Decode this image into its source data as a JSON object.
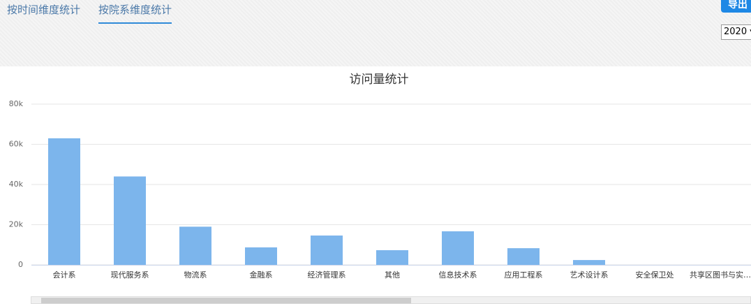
{
  "tabs": [
    "按时间维度统计",
    "按院系维度统计"
  ],
  "export_button": "导出",
  "year_select": "2020",
  "chart_data": {
    "type": "bar",
    "title": "访问量统计",
    "categories": [
      "会计系",
      "现代服务系",
      "物流系",
      "金融系",
      "经济管理系",
      "其他",
      "信息技术系",
      "应用工程系",
      "艺术设计系",
      "安全保卫处",
      "共享区图书与实…"
    ],
    "values": [
      63000,
      44000,
      19000,
      8700,
      14600,
      7300,
      16700,
      8300,
      2400,
      0,
      0
    ],
    "color": "#7cb5ec",
    "ylim": [
      0,
      80000
    ],
    "yticks": [
      {
        "value": 0,
        "label": "0"
      },
      {
        "value": 20000,
        "label": "20k"
      },
      {
        "value": 40000,
        "label": "40k"
      },
      {
        "value": 60000,
        "label": "60k"
      },
      {
        "value": 80000,
        "label": "80k"
      }
    ],
    "grid": true
  }
}
